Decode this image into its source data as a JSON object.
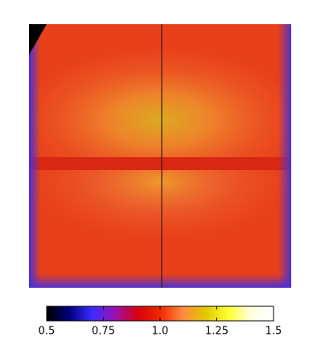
{
  "chart_data": {
    "type": "colorbar",
    "lim": [
      0.5,
      1.5
    ],
    "ticks": [
      0.5,
      0.75,
      {
        "value": 1,
        "label": "1.0"
      },
      1.25,
      1.5
    ],
    "colors": [
      "#000000",
      "#00007a",
      "#3a2cff",
      "#9a10b0",
      "#d80010",
      "#f02800",
      "#ff8a40",
      "#e0c800",
      "#ffff30",
      "#ffffe0",
      "#ffffff"
    ]
  }
}
